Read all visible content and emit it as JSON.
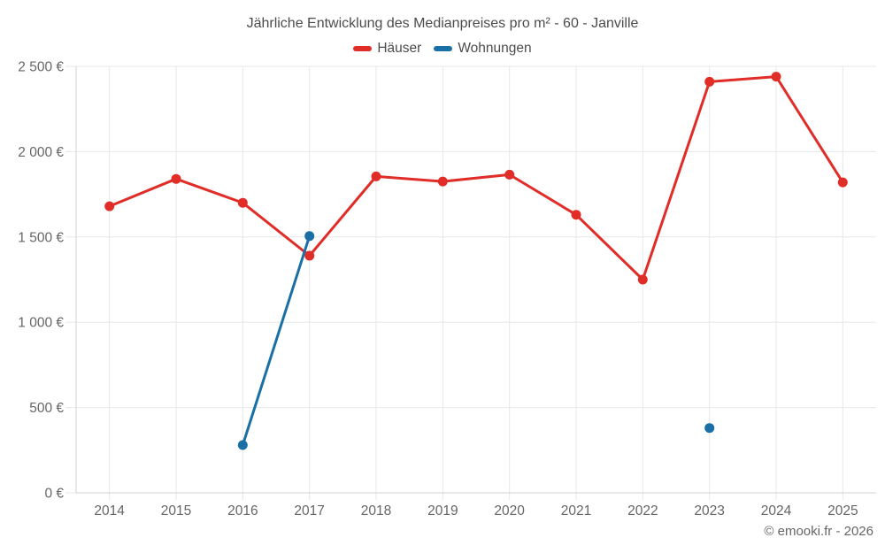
{
  "chart_data": {
    "type": "line",
    "title": "Jährliche Entwicklung des Medianpreises pro m² - 60 - Janville",
    "categories": [
      "2014",
      "2015",
      "2016",
      "2017",
      "2018",
      "2019",
      "2020",
      "2021",
      "2022",
      "2023",
      "2024",
      "2025"
    ],
    "series": [
      {
        "name": "Häuser",
        "color": "#e02d28",
        "values": [
          1680,
          1840,
          1700,
          1390,
          1855,
          1825,
          1865,
          1630,
          1250,
          2410,
          2440,
          1820
        ]
      },
      {
        "name": "Wohnungen",
        "color": "#1a6fa4",
        "values": [
          null,
          null,
          280,
          1505,
          null,
          null,
          null,
          null,
          null,
          380,
          null,
          null
        ]
      }
    ],
    "xlabel": "",
    "ylabel": "",
    "ylim": [
      0,
      2500
    ],
    "yticks": [
      0,
      500,
      1000,
      1500,
      2000,
      2500
    ],
    "ytick_labels": [
      "0 €",
      "500 €",
      "1 000 €",
      "1 500 €",
      "2 000 €",
      "2 500 €"
    ],
    "grid": true,
    "legend_position": "top",
    "marker": "circle"
  },
  "footer": {
    "credit": "© emooki.fr - 2026"
  },
  "colors": {
    "background": "#ffffff",
    "grid": "#e7e7e7",
    "axis": "#d2d2d2",
    "title_text": "#4c4c4c",
    "axis_text": "#666666"
  }
}
